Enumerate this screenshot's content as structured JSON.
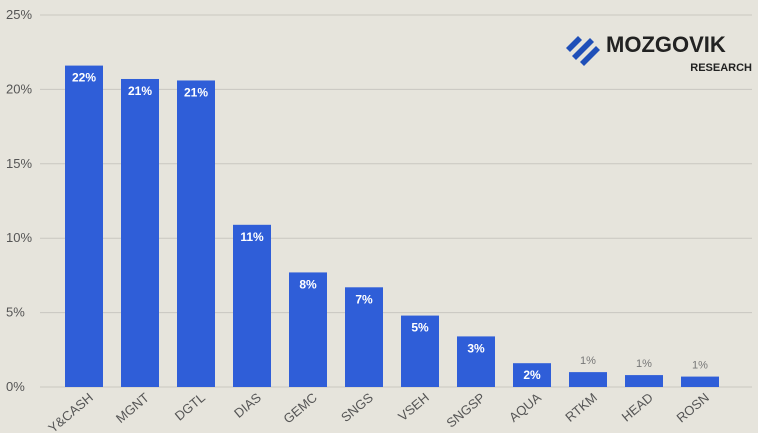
{
  "chart_data": {
    "type": "bar",
    "categories": [
      "Y&CASH",
      "MGNT",
      "DGTL",
      "DIAS",
      "GEMC",
      "SNGS",
      "VSEH",
      "SNGSP",
      "AQUA",
      "RTKM",
      "HEAD",
      "ROSN"
    ],
    "values": [
      21.6,
      20.7,
      20.6,
      10.9,
      7.7,
      6.7,
      4.8,
      3.4,
      1.6,
      1.0,
      0.8,
      0.7
    ],
    "value_labels": [
      "22%",
      "21%",
      "21%",
      "11%",
      "8%",
      "7%",
      "5%",
      "3%",
      "2%",
      "1%",
      "1%",
      "1%"
    ],
    "color": "#2f5ed8",
    "ylim": [
      0,
      25
    ],
    "yticks": [
      {
        "value": 0,
        "label": "0%"
      },
      {
        "value": 5,
        "label": "5%"
      },
      {
        "value": 10,
        "label": "10%"
      },
      {
        "value": 15,
        "label": "15%"
      },
      {
        "value": 20,
        "label": "20%"
      },
      {
        "value": 25,
        "label": "25%"
      }
    ],
    "grid": true,
    "logo": {
      "name": "MOZGOVIK",
      "subtitle": "RESEARCH"
    }
  }
}
